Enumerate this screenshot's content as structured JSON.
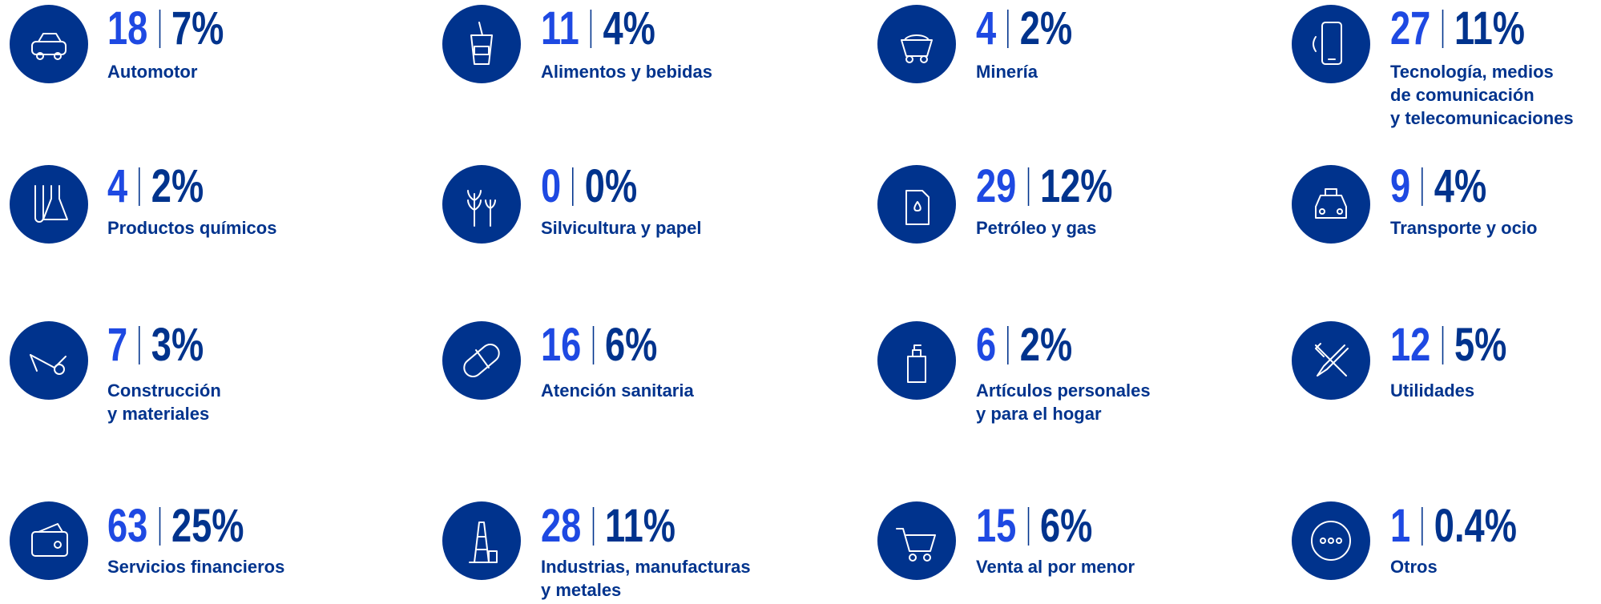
{
  "items": [
    {
      "count": "18",
      "percent": "7%",
      "label": [
        "Automotor"
      ]
    },
    {
      "count": "11",
      "percent": "4%",
      "label": [
        "Alimentos y bebidas"
      ]
    },
    {
      "count": "4",
      "percent": "2%",
      "label": [
        "Minería"
      ]
    },
    {
      "count": "27",
      "percent": "11%",
      "label": [
        "Tecnología, medios",
        "de comunicación",
        "y telecomunicaciones"
      ]
    },
    {
      "count": "4",
      "percent": "2%",
      "label": [
        "Productos químicos"
      ]
    },
    {
      "count": "0",
      "percent": "0%",
      "label": [
        "Silvicultura y papel"
      ]
    },
    {
      "count": "29",
      "percent": "12%",
      "label": [
        "Petróleo y gas"
      ]
    },
    {
      "count": "9",
      "percent": "4%",
      "label": [
        "Transporte y ocio"
      ]
    },
    {
      "count": "7",
      "percent": "3%",
      "label": [
        "Construcción",
        "y materiales"
      ]
    },
    {
      "count": "16",
      "percent": "6%",
      "label": [
        "Atención sanitaria"
      ]
    },
    {
      "count": "6",
      "percent": "2%",
      "label": [
        "Artículos personales",
        "y para el hogar"
      ]
    },
    {
      "count": "12",
      "percent": "5%",
      "label": [
        "Utilidades"
      ]
    },
    {
      "count": "63",
      "percent": "25%",
      "label": [
        "Servicios financieros"
      ]
    },
    {
      "count": "28",
      "percent": "11%",
      "label": [
        "Industrias, manufacturas",
        "y metales"
      ]
    },
    {
      "count": "15",
      "percent": "6%",
      "label": [
        "Venta al por menor"
      ]
    },
    {
      "count": "1",
      "percent": "0.4%",
      "label": [
        "Otros"
      ]
    }
  ]
}
